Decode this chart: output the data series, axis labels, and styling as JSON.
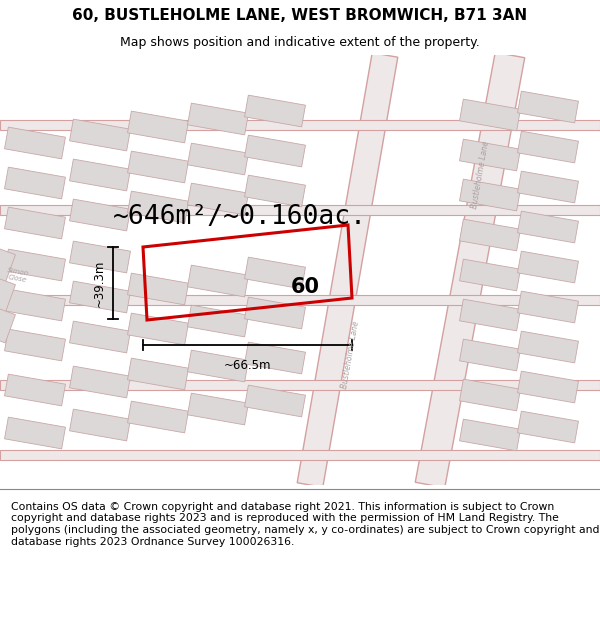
{
  "title": "60, BUSTLEHOLME LANE, WEST BROMWICH, B71 3AN",
  "subtitle": "Map shows position and indicative extent of the property.",
  "footer": "Contains OS data © Crown copyright and database right 2021. This information is subject to Crown copyright and database rights 2023 and is reproduced with the permission of HM Land Registry. The polygons (including the associated geometry, namely x, y co-ordinates) are subject to Crown copyright and database rights 2023 Ordnance Survey 100026316.",
  "area_text": "~646m²/~0.160ac.",
  "width_text": "~66.5m",
  "height_text": "~39.3m",
  "plot_label": "60",
  "map_bg": "#f2eded",
  "block_fill": "#ddd8d8",
  "block_stroke": "#c8a8a8",
  "road_stroke": "#d4a0a0",
  "highlight_stroke": "#cc0000",
  "highlight_lw": 2.2,
  "title_fontsize": 11,
  "subtitle_fontsize": 9,
  "footer_fontsize": 7.8,
  "area_fontsize": 19
}
